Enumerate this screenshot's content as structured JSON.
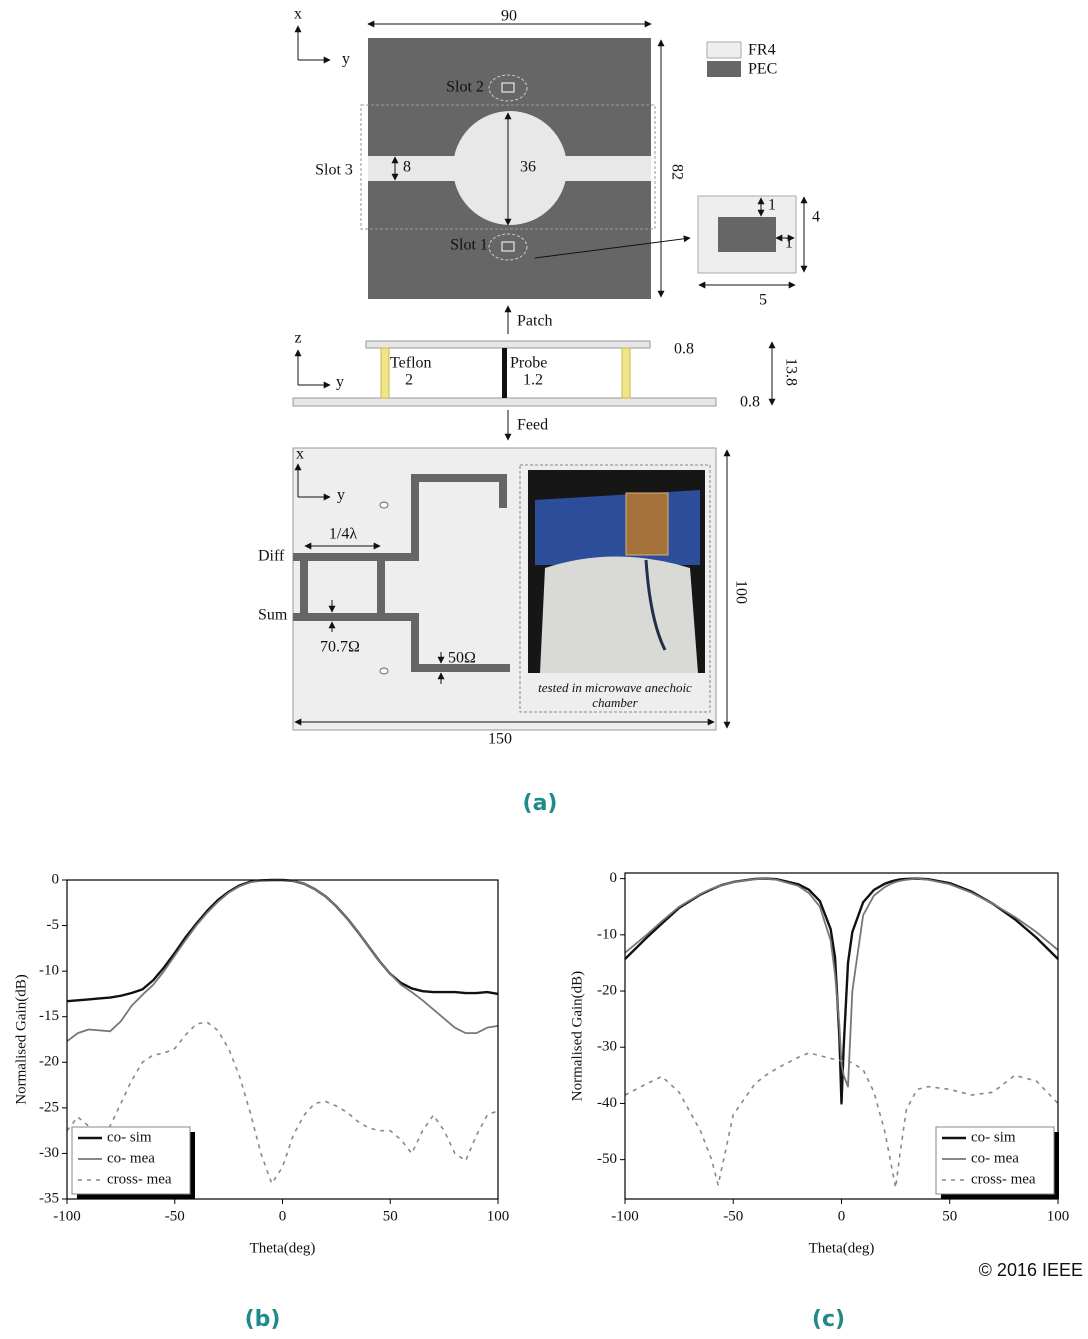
{
  "figure_a": {
    "axis_x": "x",
    "axis_y": "y",
    "width": "90",
    "height": "82",
    "legend_fr4": "FR4",
    "legend_pec": "PEC",
    "slot2": "Slot 2",
    "slot3": "Slot 3",
    "slot3_width": "8",
    "circle_diameter": "36",
    "slot1": "Slot 1",
    "slot_dim_a": "1",
    "slot_dim_b": "1",
    "slot_box_h": "4",
    "slot_box_w": "5",
    "patch": "Patch",
    "side_axis_z": "z",
    "side_axis_y": "y",
    "teflon": "Teflon",
    "teflon_d": "2",
    "probe": "Probe",
    "probe_d": "1.2",
    "patch_t": "0.8",
    "gap": "13.8",
    "feed_t": "0.8",
    "feed": "Feed",
    "feed_axis_x": "x",
    "feed_axis_y": "y",
    "quarter": "1/4λ",
    "diff": "Diff",
    "sum": "Sum",
    "z1": "70.7Ω",
    "z2": "50Ω",
    "caption": "tested in microwave anechoic chamber",
    "board_h": "100",
    "board_w": "150",
    "label": "(a)"
  },
  "chart_data": [
    {
      "type": "line",
      "panel_label": "(b)",
      "xlabel": "Theta(deg)",
      "ylabel": "Normalised Gain(dB)",
      "xlim": [
        -100,
        100
      ],
      "ylim": [
        -35,
        0
      ],
      "xticks": [
        -100,
        -50,
        0,
        50,
        100
      ],
      "yticks": [
        -35,
        -30,
        -25,
        -20,
        -15,
        -10,
        -5,
        0
      ],
      "legend": "lower left",
      "x": [
        -100,
        -95,
        -90,
        -85,
        -80,
        -75,
        -70,
        -65,
        -60,
        -55,
        -50,
        -45,
        -40,
        -35,
        -30,
        -25,
        -20,
        -15,
        -10,
        -5,
        0,
        5,
        10,
        15,
        20,
        25,
        30,
        35,
        40,
        45,
        50,
        55,
        60,
        65,
        70,
        75,
        80,
        85,
        90,
        95,
        100
      ],
      "series": [
        {
          "name": "co- sim",
          "color": "#111111",
          "width": 2.4,
          "dash": false,
          "values": [
            -13.3,
            -13.2,
            -13.1,
            -13.0,
            -12.9,
            -12.7,
            -12.4,
            -12.0,
            -11.0,
            -9.6,
            -8.0,
            -6.3,
            -4.8,
            -3.4,
            -2.2,
            -1.3,
            -0.6,
            -0.2,
            -0.05,
            0,
            0,
            -0.1,
            -0.4,
            -1.0,
            -1.8,
            -2.9,
            -4.2,
            -5.7,
            -7.3,
            -8.9,
            -10.3,
            -11.3,
            -11.9,
            -12.2,
            -12.3,
            -12.3,
            -12.3,
            -12.4,
            -12.4,
            -12.3,
            -12.5
          ]
        },
        {
          "name": "co- mea",
          "color": "#777777",
          "width": 1.8,
          "dash": false,
          "values": [
            -17.7,
            -16.8,
            -16.4,
            -16.5,
            -16.6,
            -15.5,
            -13.8,
            -12.6,
            -11.5,
            -10.0,
            -8.3,
            -6.6,
            -5.0,
            -3.6,
            -2.4,
            -1.4,
            -0.7,
            -0.25,
            -0.05,
            0,
            0,
            -0.1,
            -0.4,
            -1.0,
            -1.8,
            -2.9,
            -4.2,
            -5.7,
            -7.3,
            -8.9,
            -10.3,
            -11.5,
            -12.3,
            -13.2,
            -14.2,
            -15.2,
            -16.2,
            -16.8,
            -16.8,
            -16.2,
            -16.0
          ]
        },
        {
          "name": "cross- mea",
          "color": "#888888",
          "width": 1.6,
          "dash": true,
          "values": [
            -27.5,
            -26.0,
            -27.0,
            -29.0,
            -27.0,
            -24.5,
            -22.0,
            -20.0,
            -19.2,
            -19.0,
            -18.5,
            -17.0,
            -15.8,
            -15.6,
            -16.5,
            -18.5,
            -21.5,
            -25.5,
            -30.0,
            -33.3,
            -31.5,
            -28.0,
            -25.8,
            -24.5,
            -24.3,
            -24.8,
            -25.5,
            -26.5,
            -27.2,
            -27.5,
            -27.5,
            -28.5,
            -30.0,
            -27.5,
            -25.8,
            -27.5,
            -30.0,
            -30.8,
            -28.0,
            -25.8,
            -25.3
          ]
        }
      ]
    },
    {
      "type": "line",
      "panel_label": "(c)",
      "xlabel": "Theta(deg)",
      "ylabel": "Normalised Gain(dB)",
      "xlim": [
        -100,
        100
      ],
      "ylim": [
        -57,
        1
      ],
      "xticks": [
        -100,
        -50,
        0,
        50,
        100
      ],
      "yticks": [
        -50,
        -40,
        -30,
        -20,
        -10,
        0
      ],
      "legend": "lower right",
      "x": [
        -100,
        -90,
        -83,
        -75,
        -65,
        -60,
        -57,
        -55,
        -50,
        -40,
        -35,
        -30,
        -20,
        -15,
        -10,
        -5,
        -3,
        -1,
        0,
        1,
        3,
        5,
        10,
        15,
        20,
        23,
        25,
        27,
        30,
        35,
        40,
        50,
        60,
        70,
        80,
        90,
        100
      ],
      "series": [
        {
          "name": "co- sim",
          "color": "#111111",
          "width": 2.4,
          "dash": false,
          "values": [
            -14.3,
            -10.5,
            -8.0,
            -5.2,
            -2.8,
            -1.9,
            -1.4,
            -1.1,
            -0.6,
            -0.05,
            0,
            -0.1,
            -1.0,
            -2.0,
            -4.0,
            -9,
            -14,
            -28,
            -40,
            -30,
            -15,
            -9.5,
            -4.2,
            -2.0,
            -0.9,
            -0.5,
            -0.3,
            -0.15,
            -0.05,
            0,
            -0.1,
            -0.8,
            -2.3,
            -4.5,
            -7.2,
            -10.5,
            -14.3
          ]
        },
        {
          "name": "co- mea",
          "color": "#777777",
          "width": 1.8,
          "dash": false,
          "values": [
            -13.2,
            -10.0,
            -7.6,
            -5.0,
            -2.7,
            -1.8,
            -1.4,
            -1.1,
            -0.6,
            -0.1,
            0,
            -0.2,
            -1.3,
            -2.6,
            -5.0,
            -11,
            -17,
            -26,
            -33,
            -35,
            -37,
            -20,
            -6.5,
            -3,
            -1.5,
            -0.9,
            -0.6,
            -0.4,
            -0.2,
            0,
            -0.2,
            -1.0,
            -2.5,
            -4.5,
            -6.8,
            -9.5,
            -12.7
          ]
        },
        {
          "name": "cross- mea",
          "color": "#888888",
          "width": 1.6,
          "dash": true,
          "values": [
            -38.5,
            -36.5,
            -35.2,
            -38,
            -45,
            -50,
            -54.5,
            -51,
            -42,
            -36.5,
            -35,
            -33.8,
            -31.8,
            -31,
            -31.5,
            -32,
            -32.2,
            -32.3,
            -32.5,
            -32.5,
            -32.5,
            -32.8,
            -34,
            -38,
            -45,
            -51,
            -55,
            -49,
            -41,
            -37.5,
            -37,
            -37.5,
            -38.5,
            -38,
            -35,
            -36,
            -40
          ]
        }
      ]
    }
  ],
  "copyright": "© 2016 IEEE"
}
